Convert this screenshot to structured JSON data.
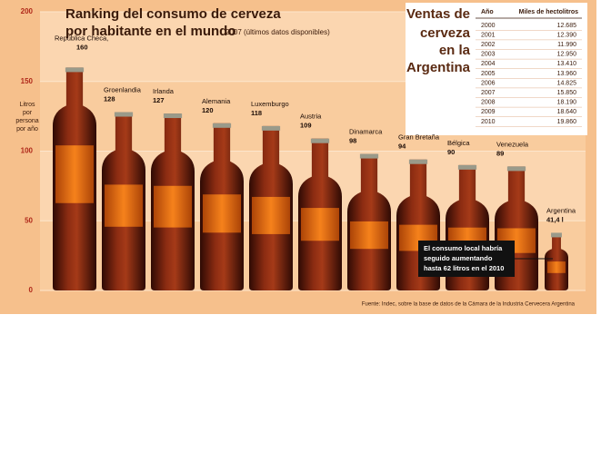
{
  "chart_data": {
    "type": "bar",
    "title": [
      "Ranking del consumo de cerveza",
      "por habitante en el mundo"
    ],
    "subtitle": "2007 (últimos datos disponibles)",
    "y_label": [
      "Litros",
      "por",
      "persona",
      "por año"
    ],
    "categories": [
      "República Checa,",
      "Groenlandia",
      "Irlanda",
      "Alemania",
      "Luxemburgo",
      "Austria",
      "Dinamarca",
      "Gran Bretaña",
      "Bélgica",
      "Venezuela",
      "Argentina"
    ],
    "values": [
      160,
      128,
      127,
      120,
      118,
      109,
      98,
      94,
      90,
      89,
      41.4
    ],
    "value_labels": [
      "160",
      "128",
      "127",
      "120",
      "118",
      "109",
      "98",
      "94",
      "90",
      "89",
      "41,4 l"
    ],
    "color": "#7a2410",
    "ylim": [
      0,
      200
    ],
    "yticks": [
      0,
      50,
      100,
      150,
      200
    ],
    "grid": true,
    "annotation": [
      "El consumo local habría",
      "seguido aumentando",
      "hasta 62 litros en el 2010"
    ],
    "source": "Fuente: Indec, sobre la base de datos de la Cámara de la Industria Cervecera Argentina"
  },
  "table": {
    "title": [
      "Ventas de",
      "cerveza",
      "en la",
      "Argentina"
    ],
    "columns": [
      "Año",
      "Miles de hectolitros"
    ],
    "rows": [
      [
        "2000",
        "12.685"
      ],
      [
        "2001",
        "12.390"
      ],
      [
        "2002",
        "11.990"
      ],
      [
        "2003",
        "12.950"
      ],
      [
        "2004",
        "13.410"
      ],
      [
        "2005",
        "13.960"
      ],
      [
        "2006",
        "14.825"
      ],
      [
        "2007",
        "15.850"
      ],
      [
        "2008",
        "18.190"
      ],
      [
        "2009",
        "18.640"
      ],
      [
        "2010",
        "19.860"
      ]
    ]
  }
}
